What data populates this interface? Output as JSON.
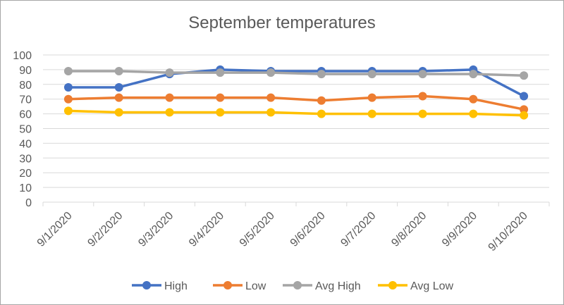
{
  "chart_data": {
    "type": "line",
    "title": "September temperatures",
    "xlabel": "",
    "ylabel": "",
    "categories": [
      "9/1/2020",
      "9/2/2020",
      "9/3/2020",
      "9/4/2020",
      "9/5/2020",
      "9/6/2020",
      "9/7/2020",
      "9/8/2020",
      "9/9/2020",
      "9/10/2020"
    ],
    "ylim": [
      0,
      100
    ],
    "yticks": [
      "0",
      "10",
      "20",
      "30",
      "40",
      "50",
      "60",
      "70",
      "80",
      "90",
      "100"
    ],
    "grid": true,
    "legend_position": "bottom",
    "series": [
      {
        "name": "High",
        "color": "#4472c4",
        "values": [
          78,
          78,
          87,
          90,
          89,
          89,
          89,
          89,
          90,
          72
        ]
      },
      {
        "name": "Low",
        "color": "#ed7d31",
        "values": [
          70,
          71,
          71,
          71,
          71,
          69,
          71,
          72,
          70,
          63
        ]
      },
      {
        "name": "Avg High",
        "color": "#a5a5a5",
        "values": [
          89,
          89,
          88,
          88,
          88,
          87,
          87,
          87,
          87,
          86
        ]
      },
      {
        "name": "Avg Low",
        "color": "#ffc000",
        "values": [
          62,
          61,
          61,
          61,
          61,
          60,
          60,
          60,
          60,
          59
        ]
      }
    ]
  }
}
